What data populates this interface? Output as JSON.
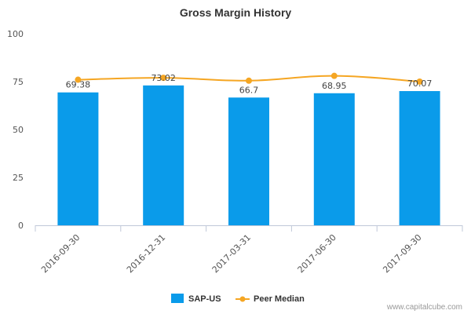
{
  "chart_data": {
    "type": "bar",
    "title": "Gross Margin History",
    "categories": [
      "2016-09-30",
      "2016-12-31",
      "2017-03-31",
      "2017-06-30",
      "2017-09-30"
    ],
    "series": [
      {
        "name": "SAP-US",
        "kind": "bar",
        "values": [
          69.38,
          73.02,
          66.7,
          68.95,
          70.07
        ],
        "value_labels": [
          "69.38",
          "73.02",
          "66.7",
          "68.95",
          "70.07"
        ]
      },
      {
        "name": "Peer Median",
        "kind": "line",
        "values": [
          76.0,
          77.0,
          75.5,
          78.0,
          75.0
        ]
      }
    ],
    "ylim": [
      0,
      100
    ],
    "yticks": [
      "0",
      "25",
      "50",
      "75",
      "100"
    ],
    "xlabel": "",
    "ylabel": "",
    "legend": "bottom-center",
    "grid": false
  },
  "colors": {
    "bar": "#0a9bea",
    "line": "#f5a623",
    "axis": "#c0c8d8",
    "text": "#333333"
  },
  "credit": "www.capitalcube.com"
}
